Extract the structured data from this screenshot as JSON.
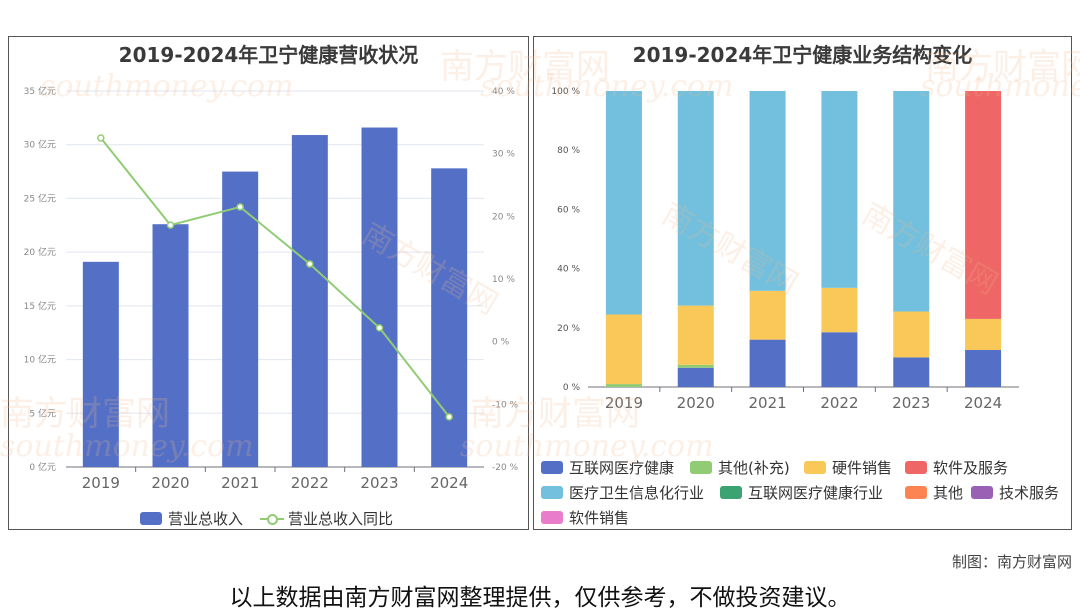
{
  "chart_data": [
    {
      "type": "bar",
      "title": "2019-2024年卫宁健康营收状况",
      "categories": [
        "2019",
        "2020",
        "2021",
        "2022",
        "2023",
        "2024"
      ],
      "series": [
        {
          "name": "营业总收入",
          "kind": "bar",
          "axis": "left",
          "color": "#5470c6",
          "values": [
            19.1,
            22.6,
            27.5,
            30.9,
            31.6,
            27.8
          ]
        },
        {
          "name": "营业总收入同比",
          "kind": "line",
          "axis": "right",
          "color": "#91cc75",
          "values": [
            32.5,
            18.6,
            21.5,
            12.4,
            2.2,
            -12.0
          ]
        }
      ],
      "left_axis": {
        "ticks": [
          0,
          5,
          10,
          15,
          20,
          25,
          30,
          35
        ],
        "labels": [
          "0 亿元",
          "5 亿元",
          "10 亿元",
          "15 亿元",
          "20 亿元",
          "25 亿元",
          "30 亿元",
          "35 亿元"
        ],
        "ylim": [
          0,
          35
        ]
      },
      "right_axis": {
        "ticks": [
          -20,
          -10,
          0,
          10,
          20,
          30,
          40
        ],
        "labels": [
          "-20 %",
          "-10 %",
          "0 %",
          "10 %",
          "20 %",
          "30 %",
          "40 %"
        ],
        "ylim": [
          -20,
          40
        ]
      },
      "legend_position": "bottom"
    },
    {
      "type": "bar",
      "stacked": true,
      "title": "2019-2024年卫宁健康业务结构变化",
      "categories": [
        "2019",
        "2020",
        "2021",
        "2022",
        "2023",
        "2024"
      ],
      "series": [
        {
          "name": "互联网医疗健康",
          "color": "#5470c6",
          "values": [
            0,
            6.5,
            16,
            18.5,
            10,
            12.5
          ]
        },
        {
          "name": "其他(补充)",
          "color": "#91cc75",
          "values": [
            1,
            1,
            0,
            0,
            0,
            0
          ]
        },
        {
          "name": "硬件销售",
          "color": "#fac858",
          "values": [
            23.5,
            20,
            16.5,
            15,
            15.5,
            10.5
          ]
        },
        {
          "name": "软件及服务",
          "color": "#ee6666",
          "values": [
            0,
            0,
            0,
            0,
            0,
            77
          ]
        },
        {
          "name": "医疗卫生信息化行业",
          "color": "#73c0de",
          "values": [
            75.5,
            72.5,
            67.5,
            66.5,
            74.5,
            0
          ]
        },
        {
          "name": "互联网医疗健康行业",
          "color": "#3ba272",
          "values": [
            0,
            0,
            0,
            0,
            0,
            0
          ]
        },
        {
          "name": "其他",
          "color": "#fc8452",
          "values": [
            0,
            0,
            0,
            0,
            0,
            0
          ]
        },
        {
          "name": "技术服务",
          "color": "#9a60b4",
          "values": [
            0,
            0,
            0,
            0,
            0,
            0
          ]
        },
        {
          "name": "软件销售",
          "color": "#ea7ccc",
          "values": [
            0,
            0,
            0,
            0,
            0,
            0
          ]
        }
      ],
      "y_axis": {
        "ticks": [
          0,
          20,
          40,
          60,
          80,
          100
        ],
        "labels": [
          "0 %",
          "20 %",
          "40 %",
          "60 %",
          "80 %",
          "100 %"
        ],
        "ylim": [
          0,
          100
        ]
      },
      "legend_position": "bottom"
    }
  ],
  "footer": {
    "credit": "制图：南方财富网",
    "disclaimer": "以上数据由南方财富网整理提供，仅供参考，不做投资建议。"
  },
  "watermark": {
    "text_cn": "南方财富网",
    "text_en": "southmoney.com"
  }
}
